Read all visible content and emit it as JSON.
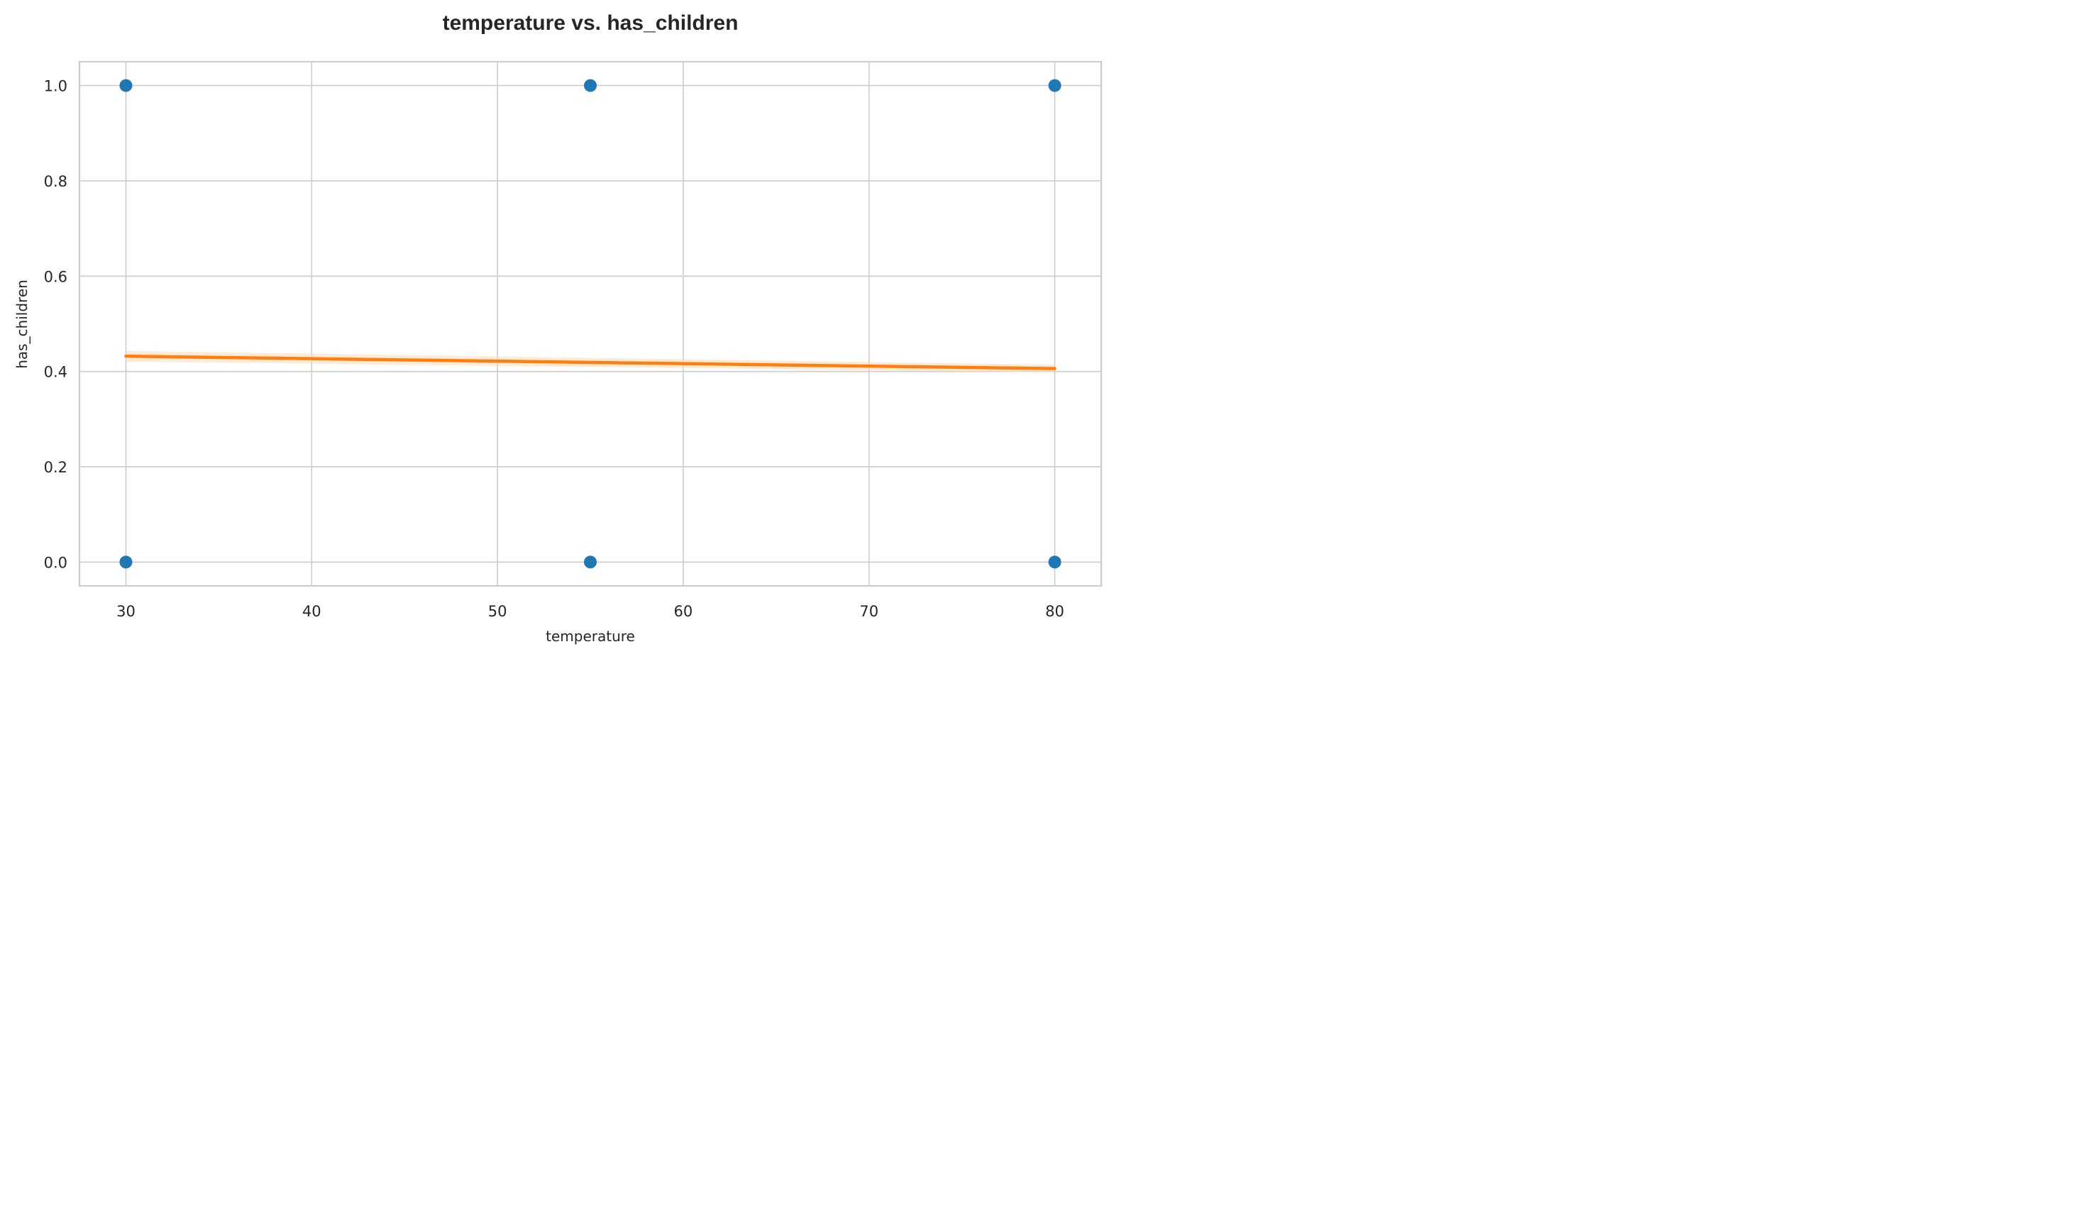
{
  "chart_data": {
    "type": "scatter",
    "title": "temperature vs. has_children",
    "xlabel": "temperature",
    "ylabel": "has_children",
    "xlim": [
      27.5,
      82.5
    ],
    "ylim": [
      -0.05,
      1.05
    ],
    "xticks": [
      30,
      40,
      50,
      60,
      70,
      80
    ],
    "yticks": [
      0.0,
      0.2,
      0.4,
      0.6,
      0.8,
      1.0
    ],
    "xtick_labels": [
      "30",
      "40",
      "50",
      "60",
      "70",
      "80"
    ],
    "ytick_labels": [
      "0.0",
      "0.2",
      "0.4",
      "0.6",
      "0.8",
      "1.0"
    ],
    "grid": true,
    "points": {
      "x": [
        30,
        30,
        55,
        55,
        80,
        80
      ],
      "y": [
        1.0,
        0.0,
        1.0,
        0.0,
        1.0,
        0.0
      ],
      "color": "#1f77b4"
    },
    "regression": {
      "x": [
        30,
        80
      ],
      "y": [
        0.432,
        0.406
      ],
      "ci_lower": [
        0.421,
        0.398
      ],
      "ci_upper": [
        0.443,
        0.414
      ],
      "color": "#ff7f0e",
      "ci_color": "#fdd9b5"
    }
  }
}
